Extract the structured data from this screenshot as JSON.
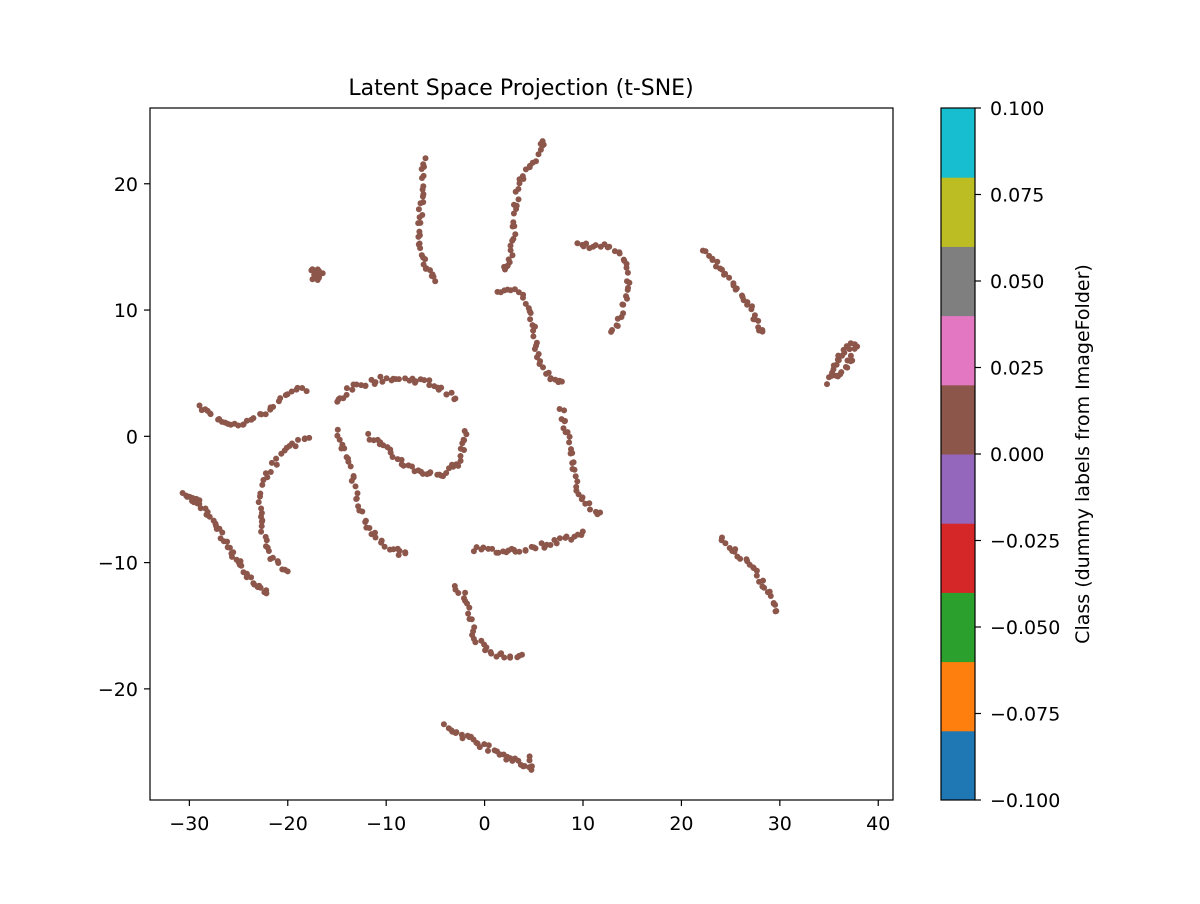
{
  "chart_data": {
    "type": "scatter",
    "title": "Latent Space Projection (t-SNE)",
    "xlabel": "",
    "ylabel": "",
    "xlim": [
      -34,
      41.5
    ],
    "ylim": [
      -28.8,
      26
    ],
    "x_ticks": [
      -30,
      -20,
      -10,
      0,
      10,
      20,
      30,
      40
    ],
    "x_tick_labels": [
      "−30",
      "−20",
      "−10",
      "0",
      "10",
      "20",
      "30",
      "40"
    ],
    "y_ticks": [
      -20,
      -10,
      0,
      10,
      20
    ],
    "y_tick_labels": [
      "−20",
      "−10",
      "0",
      "10",
      "20"
    ],
    "grid": false,
    "point_color": "#8c564b",
    "clusters": [
      {
        "points": [
          [
            -6,
            22
          ],
          [
            -6.2,
            21
          ],
          [
            -6.3,
            20
          ],
          [
            -6.3,
            19
          ],
          [
            -6.5,
            18
          ],
          [
            -6.6,
            17
          ],
          [
            -6.6,
            16
          ],
          [
            -6.5,
            15
          ],
          [
            -6.3,
            14.2
          ],
          [
            -5.9,
            13.5
          ],
          [
            -5.5,
            12.9
          ],
          [
            -5,
            12.3
          ]
        ]
      },
      {
        "points": [
          [
            6,
            23.5
          ],
          [
            5.7,
            22.8
          ],
          [
            5.2,
            22
          ],
          [
            4.5,
            21.2
          ],
          [
            3.9,
            20.4
          ],
          [
            3.4,
            19.6
          ],
          [
            3.2,
            18.5
          ],
          [
            3.1,
            17.5
          ],
          [
            3,
            16.5
          ],
          [
            2.9,
            15.5
          ],
          [
            2.7,
            14.5
          ],
          [
            2.4,
            13.7
          ],
          [
            2.1,
            13.1
          ]
        ]
      },
      {
        "points": [
          [
            9.5,
            15.1
          ],
          [
            10.5,
            15.1
          ],
          [
            11.5,
            15.1
          ],
          [
            12.5,
            15
          ],
          [
            13.5,
            14.5
          ],
          [
            14.2,
            13.8
          ],
          [
            14.5,
            12.8
          ],
          [
            14.5,
            11.8
          ],
          [
            14.3,
            10.8
          ],
          [
            14,
            9.9
          ],
          [
            13.5,
            9
          ],
          [
            13,
            8.2
          ]
        ]
      },
      {
        "points": [
          [
            22.3,
            14.6
          ],
          [
            23,
            14.2
          ],
          [
            23.7,
            13.6
          ],
          [
            24.4,
            13
          ],
          [
            25.1,
            12.3
          ],
          [
            25.8,
            11.6
          ],
          [
            26.4,
            10.9
          ],
          [
            27,
            10.1
          ],
          [
            27.5,
            9.4
          ],
          [
            27.9,
            8.7
          ],
          [
            28.1,
            8.2
          ]
        ]
      },
      {
        "points": [
          [
            -17.5,
            13.1
          ],
          [
            -17,
            13.2
          ],
          [
            -16.6,
            12.8
          ],
          [
            -17.3,
            12.6
          ],
          [
            -16.8,
            12.4
          ],
          [
            -17.2,
            12.9
          ]
        ]
      },
      {
        "points": [
          [
            35,
            4.2
          ],
          [
            35.2,
            5
          ],
          [
            35.6,
            5.6
          ],
          [
            36,
            6.2
          ],
          [
            36.5,
            6.8
          ],
          [
            37,
            7.2
          ],
          [
            37.7,
            7
          ],
          [
            37.3,
            6.2
          ],
          [
            36.8,
            5.6
          ],
          [
            36.3,
            5
          ],
          [
            35.7,
            4.6
          ]
        ]
      },
      {
        "points": [
          [
            1.5,
            11.5
          ],
          [
            2.5,
            11.7
          ],
          [
            3.5,
            11.4
          ],
          [
            4.2,
            10.6
          ],
          [
            4.7,
            9.6
          ],
          [
            5,
            8.6
          ],
          [
            5.2,
            7.6
          ],
          [
            5.4,
            6.6
          ],
          [
            5.8,
            5.6
          ],
          [
            6.3,
            4.9
          ],
          [
            7,
            4.4
          ],
          [
            8,
            4.2
          ]
        ]
      },
      {
        "points": [
          [
            -15,
            2.7
          ],
          [
            -14.3,
            3.2
          ],
          [
            -13.5,
            3.8
          ],
          [
            -12.6,
            4.1
          ],
          [
            -11.6,
            4.3
          ],
          [
            -10.5,
            4.5
          ],
          [
            -9.5,
            4.6
          ],
          [
            -8.5,
            4.5
          ],
          [
            -7.5,
            4.5
          ],
          [
            -6.5,
            4.4
          ],
          [
            -5.5,
            4.2
          ],
          [
            -4.6,
            3.8
          ],
          [
            -3.8,
            3.4
          ],
          [
            -2.9,
            2.9
          ]
        ]
      },
      {
        "points": [
          [
            -29,
            2.3
          ],
          [
            -28.3,
            1.9
          ],
          [
            -27.3,
            1.5
          ],
          [
            -26.3,
            1.2
          ],
          [
            -25.3,
            1
          ],
          [
            -24.3,
            1.1
          ],
          [
            -23.3,
            1.4
          ],
          [
            -22.3,
            1.9
          ],
          [
            -21.3,
            2.5
          ],
          [
            -20.3,
            3.1
          ],
          [
            -19.3,
            3.6
          ],
          [
            -18.3,
            3.8
          ]
        ]
      },
      {
        "points": [
          [
            7.8,
            2.1
          ],
          [
            8,
            1.3
          ],
          [
            8.3,
            0.5
          ],
          [
            8.6,
            -0.5
          ],
          [
            8.9,
            -1.5
          ],
          [
            9.1,
            -2.5
          ],
          [
            9.3,
            -3.5
          ],
          [
            9.6,
            -4.5
          ],
          [
            10.3,
            -5.3
          ],
          [
            11.1,
            -5.8
          ],
          [
            11.7,
            -6.1
          ]
        ]
      },
      {
        "points": [
          [
            -11.8,
            0
          ],
          [
            -11,
            -0.4
          ],
          [
            -10.2,
            -0.9
          ],
          [
            -9.4,
            -1.4
          ],
          [
            -8.6,
            -1.9
          ],
          [
            -7.8,
            -2.4
          ],
          [
            -6.9,
            -2.7
          ],
          [
            -6,
            -2.9
          ],
          [
            -5,
            -3
          ],
          [
            -4.2,
            -3
          ],
          [
            -3.3,
            -2.6
          ],
          [
            -2.7,
            -2
          ],
          [
            -2.3,
            -1.2
          ],
          [
            -2.1,
            -0.3
          ],
          [
            -1.9,
            0.4
          ]
        ]
      },
      {
        "points": [
          [
            -15,
            0.5
          ],
          [
            -14.5,
            -0.5
          ],
          [
            -14,
            -1.5
          ],
          [
            -13.6,
            -2.6
          ],
          [
            -13.3,
            -3.7
          ],
          [
            -13,
            -4.8
          ],
          [
            -12.6,
            -5.8
          ],
          [
            -12.1,
            -6.8
          ],
          [
            -11.5,
            -7.6
          ],
          [
            -10.6,
            -8.3
          ],
          [
            -9.7,
            -8.8
          ],
          [
            -8.7,
            -9.2
          ],
          [
            -8,
            -9.4
          ]
        ]
      },
      {
        "points": [
          [
            -17.8,
            0
          ],
          [
            -18.8,
            -0.4
          ],
          [
            -19.8,
            -0.9
          ],
          [
            -20.8,
            -1.5
          ],
          [
            -21.6,
            -2.3
          ],
          [
            -22.2,
            -3.3
          ],
          [
            -22.6,
            -4.4
          ],
          [
            -22.8,
            -5.5
          ],
          [
            -22.8,
            -6.6
          ],
          [
            -22.6,
            -7.6
          ],
          [
            -22.2,
            -8.6
          ],
          [
            -21.6,
            -9.5
          ],
          [
            -20.9,
            -10.2
          ],
          [
            -20.2,
            -10.9
          ]
        ]
      },
      {
        "points": [
          [
            -30.5,
            -4.6
          ],
          [
            -30,
            -4.8
          ],
          [
            -29.5,
            -5
          ],
          [
            -29,
            -5.3
          ],
          [
            -28.5,
            -5.6
          ],
          [
            -28,
            -6.3
          ],
          [
            -27.5,
            -6.9
          ],
          [
            -27,
            -7.5
          ],
          [
            -26.5,
            -8.2
          ],
          [
            -26,
            -8.9
          ],
          [
            -25.5,
            -9.5
          ],
          [
            -25,
            -10
          ],
          [
            -24.5,
            -10.6
          ],
          [
            -24,
            -11.1
          ],
          [
            -23.3,
            -11.6
          ],
          [
            -22.6,
            -12
          ],
          [
            -22,
            -12.3
          ]
        ]
      },
      {
        "points": [
          [
            -1,
            -8.9
          ],
          [
            0,
            -9
          ],
          [
            1,
            -9.1
          ],
          [
            2,
            -9.1
          ],
          [
            3,
            -9
          ],
          [
            4,
            -8.9
          ],
          [
            5,
            -8.8
          ],
          [
            6,
            -8.6
          ],
          [
            7,
            -8.4
          ],
          [
            8,
            -8.1
          ],
          [
            9,
            -7.9
          ],
          [
            10,
            -7.6
          ]
        ]
      },
      {
        "points": [
          [
            24,
            -8.2
          ],
          [
            24.8,
            -8.7
          ],
          [
            25.6,
            -9.2
          ],
          [
            26.4,
            -9.8
          ],
          [
            27.1,
            -10.4
          ],
          [
            27.8,
            -11.1
          ],
          [
            28.4,
            -11.8
          ],
          [
            29,
            -12.5
          ],
          [
            29.5,
            -13.3
          ],
          [
            29.8,
            -14
          ]
        ]
      },
      {
        "points": [
          [
            -3,
            -11.8
          ],
          [
            -2.2,
            -12.4
          ],
          [
            -1.7,
            -13.3
          ],
          [
            -1.4,
            -14.3
          ],
          [
            -1.2,
            -15.3
          ],
          [
            -0.8,
            -16.2
          ],
          [
            0,
            -16.8
          ],
          [
            0.8,
            -17.2
          ],
          [
            1.8,
            -17.4
          ],
          [
            2.8,
            -17.3
          ],
          [
            3.8,
            -17.2
          ]
        ]
      },
      {
        "points": [
          [
            -4,
            -23
          ],
          [
            -3.2,
            -23.3
          ],
          [
            -2.4,
            -23.6
          ],
          [
            -1.6,
            -23.9
          ],
          [
            -0.8,
            -24.2
          ],
          [
            0,
            -24.5
          ],
          [
            0.8,
            -24.8
          ],
          [
            1.6,
            -25.1
          ],
          [
            2.4,
            -25.4
          ],
          [
            3.2,
            -25.7
          ],
          [
            4,
            -26
          ],
          [
            4.7,
            -26.3
          ],
          [
            4.6,
            -25.3
          ]
        ]
      }
    ],
    "colorbar": {
      "label": "Class (dummy labels from ImageFolder)",
      "range": [
        -0.1,
        0.1
      ],
      "ticks": [
        -0.1,
        -0.075,
        -0.05,
        -0.025,
        0,
        0.025,
        0.05,
        0.075,
        0.1
      ],
      "tick_labels": [
        "−0.100",
        "−0.075",
        "−0.050",
        "−0.025",
        "0.000",
        "0.025",
        "0.050",
        "0.075",
        "0.100"
      ],
      "colors": [
        "#1f77b4",
        "#ff7f0e",
        "#2ca02c",
        "#d62728",
        "#9467bd",
        "#8c564b",
        "#e377c2",
        "#7f7f7f",
        "#bcbd22",
        "#17becf"
      ]
    }
  }
}
